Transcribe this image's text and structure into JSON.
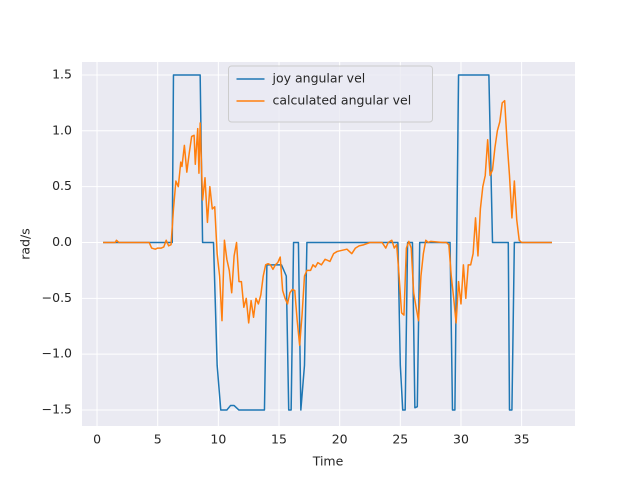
{
  "chart_data": {
    "type": "line",
    "x_label": "Time",
    "y_label": "rad/s",
    "xlim": [
      -1.24,
      39.4
    ],
    "ylim": [
      -1.643,
      1.616
    ],
    "xticks": [
      0,
      5,
      10,
      15,
      20,
      25,
      30,
      35
    ],
    "yticks": [
      {
        "value": -1.5,
        "label": "−1.5"
      },
      {
        "value": -1.0,
        "label": "−1.0"
      },
      {
        "value": -0.5,
        "label": "−0.5"
      },
      {
        "value": 0.0,
        "label": "0.0"
      },
      0.5,
      {
        "value": 1.0,
        "label": "1.0"
      },
      1.5
    ],
    "grid": true,
    "legend": "upper center",
    "series": [
      {
        "name": "joy angular vel",
        "color": "#1f77b4",
        "x": [
          0.5,
          6.2,
          6.3,
          8.5,
          8.7,
          9.6,
          9.9,
          10.2,
          10.7,
          11,
          11.3,
          11.7,
          13.8,
          14,
          15.2,
          15.6,
          15.8,
          16,
          16.2,
          16.6,
          16.8,
          17.1,
          17.3,
          24.8,
          25,
          25.2,
          25.4,
          25.6,
          26,
          26.2,
          26.4,
          26.6,
          29.1,
          29.3,
          29.5,
          29.8,
          32.3,
          32.6,
          33.9,
          34,
          34.2,
          34.4,
          37.5
        ],
        "values": [
          0,
          0,
          1.5,
          1.5,
          0,
          0,
          -1.1,
          -1.5,
          -1.5,
          -1.46,
          -1.46,
          -1.5,
          -1.5,
          -0.2,
          -0.2,
          -0.3,
          -1.5,
          -1.5,
          0,
          0,
          -1.5,
          -1.1,
          0,
          0,
          -1.1,
          -1.5,
          -1.5,
          0,
          0,
          -1.48,
          -1.47,
          0,
          0,
          -1.5,
          -1.5,
          1.5,
          1.5,
          0,
          0,
          -1.5,
          -1.5,
          0,
          0
        ]
      },
      {
        "name": "calculated angular vel",
        "color": "#ff7f0e",
        "x": [
          0.5,
          1.5,
          1.6,
          1.8,
          4.3,
          4.5,
          4.8,
          5,
          5.3,
          5.5,
          5.7,
          5.9,
          6.1,
          6.3,
          6.5,
          6.7,
          6.9,
          7,
          7.2,
          7.4,
          7.6,
          7.8,
          8,
          8.1,
          8.3,
          8.4,
          8.5,
          8.7,
          8.9,
          9.1,
          9.3,
          9.5,
          9.7,
          9.9,
          10.1,
          10.3,
          10.5,
          10.7,
          10.9,
          11.1,
          11.3,
          11.5,
          11.7,
          11.9,
          12.1,
          12.3,
          12.5,
          12.7,
          12.9,
          13.1,
          13.3,
          13.5,
          13.7,
          13.9,
          14.1,
          14.3,
          14.5,
          14.7,
          14.9,
          15.1,
          15.3,
          15.5,
          15.7,
          15.9,
          16.1,
          16.3,
          16.5,
          16.7,
          16.9,
          17.1,
          17.3,
          17.6,
          17.8,
          18,
          18.2,
          18.5,
          18.8,
          19.2,
          19.5,
          19.8,
          20.2,
          20.6,
          21,
          21.3,
          21.6,
          22,
          22.5,
          23.5,
          23.8,
          24,
          24.3,
          24.5,
          24.7,
          24.9,
          25.1,
          25.3,
          25.5,
          25.7,
          25.9,
          26.1,
          26.3,
          26.5,
          26.7,
          26.9,
          27.1,
          27.3,
          27.5,
          28.5,
          28.8,
          29,
          29.2,
          29.4,
          29.6,
          29.8,
          30,
          30.2,
          30.4,
          30.6,
          30.8,
          31,
          31.2,
          31.4,
          31.6,
          31.8,
          32,
          32.2,
          32.4,
          32.6,
          32.8,
          33,
          33.2,
          33.4,
          33.6,
          33.8,
          34,
          34.2,
          34.4,
          34.6,
          34.8,
          35,
          37.5
        ],
        "values": [
          0,
          0,
          0.02,
          0,
          0,
          -0.05,
          -0.06,
          -0.05,
          -0.05,
          -0.04,
          0.02,
          -0.03,
          -0.02,
          0.3,
          0.55,
          0.5,
          0.72,
          0.68,
          0.87,
          0.63,
          0.8,
          0.95,
          0.96,
          0.7,
          1.02,
          0.62,
          1.07,
          0.38,
          0.58,
          0.18,
          0.5,
          0.3,
          0.32,
          -0.1,
          -0.3,
          -0.7,
          0.02,
          -0.15,
          -0.25,
          -0.45,
          -0.12,
          0.0,
          -0.35,
          -0.35,
          -0.58,
          -0.5,
          -0.72,
          -0.52,
          -0.67,
          -0.5,
          -0.55,
          -0.47,
          -0.3,
          -0.2,
          -0.19,
          -0.2,
          -0.24,
          -0.2,
          -0.18,
          -0.13,
          -0.43,
          -0.5,
          -0.55,
          -0.45,
          -0.42,
          -0.43,
          -0.7,
          -0.92,
          -0.65,
          -0.3,
          -0.25,
          -0.25,
          -0.2,
          -0.22,
          -0.18,
          -0.2,
          -0.15,
          -0.17,
          -0.1,
          -0.08,
          -0.07,
          -0.06,
          -0.1,
          -0.05,
          -0.03,
          -0.02,
          0,
          0,
          -0.05,
          0,
          0.02,
          -0.05,
          -0.02,
          -0.3,
          -0.63,
          -0.65,
          -0.05,
          0.01,
          -0.05,
          -0.45,
          -0.58,
          -0.7,
          -0.3,
          -0.1,
          0.02,
          0,
          0.01,
          0,
          0,
          -0.02,
          -0.3,
          -0.5,
          -0.72,
          -0.35,
          -0.55,
          -0.2,
          -0.5,
          -0.2,
          -0.2,
          -0.1,
          0.22,
          -0.12,
          0.3,
          0.5,
          0.6,
          0.92,
          0.6,
          0.65,
          0.85,
          1.0,
          1.08,
          1.25,
          1.27,
          0.9,
          0.6,
          0.22,
          0.55,
          0.2,
          0.02,
          0,
          0
        ]
      }
    ]
  }
}
